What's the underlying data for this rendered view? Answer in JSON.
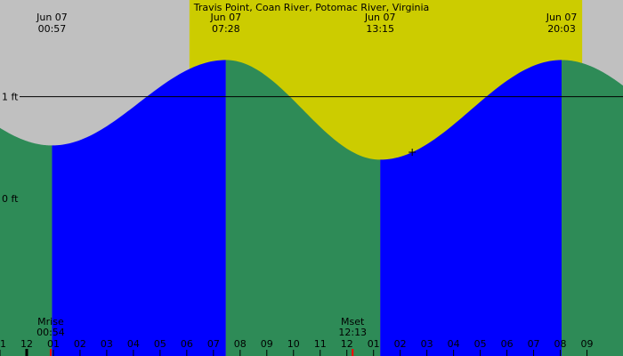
{
  "chart_data": {
    "type": "area",
    "title": "Travis Point, Coan River, Potomac River, Virginia",
    "tide_events": [
      {
        "date": "Jun 07",
        "time": "00:57",
        "type": "low",
        "height_ft": 0.52
      },
      {
        "date": "Jun 07",
        "time": "07:28",
        "type": "high",
        "height_ft": 1.36
      },
      {
        "date": "Jun 07",
        "time": "13:15",
        "type": "low",
        "height_ft": 0.38
      },
      {
        "date": "Jun 07",
        "time": "20:03",
        "type": "high",
        "height_ft": 1.36
      }
    ],
    "y_ticks": [
      {
        "label": "1 ft",
        "value": 1
      },
      {
        "label": "0 ft",
        "value": 0
      }
    ],
    "x_range_hours": [
      -1.0,
      22.35
    ],
    "y_range_ft": [
      -1.55,
      1.95
    ],
    "reference_line_ft": 1,
    "hour_tick_labels": [
      "11",
      "12",
      "01",
      "02",
      "03",
      "04",
      "05",
      "06",
      "07",
      "08",
      "09",
      "10",
      "11",
      "12",
      "01",
      "02",
      "03",
      "04",
      "05",
      "06",
      "07",
      "08",
      "09"
    ],
    "moon": [
      {
        "label": "Mrise",
        "time": "00:54"
      },
      {
        "label": "Mset",
        "time": "12:13"
      }
    ],
    "daylight_hours": [
      6.1,
      20.82
    ],
    "fill_colors": {
      "night": "#c0c0c0",
      "day": "#cccc00",
      "rising": "#0000ff",
      "falling": "#2e8b57",
      "moon_tick": "#ff0000"
    }
  }
}
